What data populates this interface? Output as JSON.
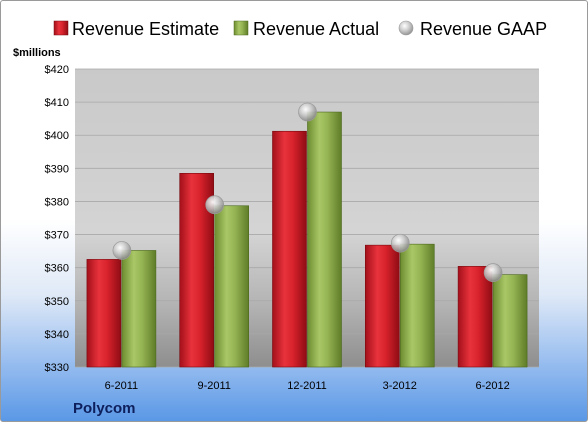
{
  "chart_data": {
    "type": "bar",
    "ylabel": "$millions",
    "ylim": [
      330,
      420
    ],
    "yticks": [
      330,
      340,
      350,
      360,
      370,
      380,
      390,
      400,
      410,
      420
    ],
    "ytick_prefix": "$",
    "categories": [
      "6-2011",
      "9-2011",
      "12-2011",
      "3-2012",
      "6-2012"
    ],
    "series": [
      {
        "name": "Revenue Estimate",
        "kind": "bar",
        "color": "#d0202a",
        "values": [
          362.5,
          388.5,
          401.2,
          366.8,
          360.4
        ]
      },
      {
        "name": "Revenue Actual",
        "kind": "bar",
        "color": "#8fb04a",
        "values": [
          365.2,
          378.7,
          407.0,
          367.1,
          357.9
        ]
      },
      {
        "name": "Revenue GAAP",
        "kind": "marker",
        "color": "#b8b8b8",
        "values": [
          365.2,
          379.0,
          407.0,
          367.4,
          358.5
        ]
      }
    ],
    "legend_position": "top",
    "grid": true,
    "company": "Polycom"
  }
}
